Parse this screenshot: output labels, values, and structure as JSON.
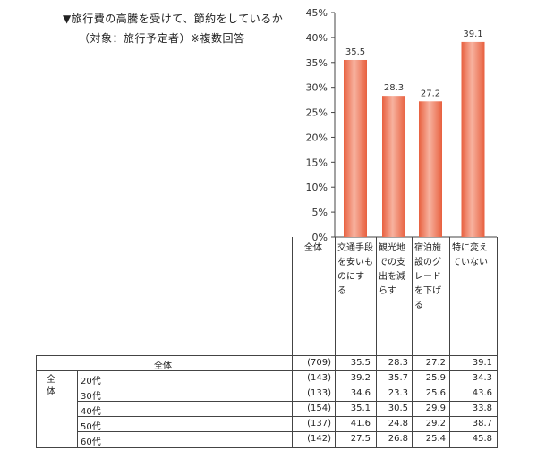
{
  "title_line1": "▼旅行費の高騰を受けて、節約をしているか",
  "title_line2": "（対象：旅行予定者）※複数回答",
  "chart_data": {
    "type": "bar",
    "categories": [
      "交通手段を安いものにする",
      "観光地での支出を減らす",
      "宿泊施設のグレードを下げる",
      "特に変えていない"
    ],
    "values": [
      35.5,
      28.3,
      27.2,
      39.1
    ],
    "value_labels": [
      "35.5",
      "28.3",
      "27.2",
      "39.1"
    ],
    "ylim": [
      0,
      45
    ],
    "yticks": [
      "0%",
      "5%",
      "10%",
      "15%",
      "20%",
      "25%",
      "30%",
      "35%",
      "40%",
      "45%"
    ],
    "bar_color": "#f0795a"
  },
  "table": {
    "header": "全体",
    "total_row": {
      "label": "全体",
      "n": "(709)",
      "values": [
        "35.5",
        "28.3",
        "27.2",
        "39.1"
      ]
    },
    "group_label": "全体",
    "age_rows": [
      {
        "label": "20代",
        "n": "(143)",
        "values": [
          "39.2",
          "35.7",
          "25.9",
          "34.3"
        ]
      },
      {
        "label": "30代",
        "n": "(133)",
        "values": [
          "34.6",
          "23.3",
          "25.6",
          "43.6"
        ]
      },
      {
        "label": "40代",
        "n": "(154)",
        "values": [
          "35.1",
          "30.5",
          "29.9",
          "33.8"
        ]
      },
      {
        "label": "50代",
        "n": "(137)",
        "values": [
          "41.6",
          "24.8",
          "29.2",
          "38.7"
        ]
      },
      {
        "label": "60代",
        "n": "(142)",
        "values": [
          "27.5",
          "26.8",
          "25.4",
          "45.8"
        ]
      }
    ]
  }
}
